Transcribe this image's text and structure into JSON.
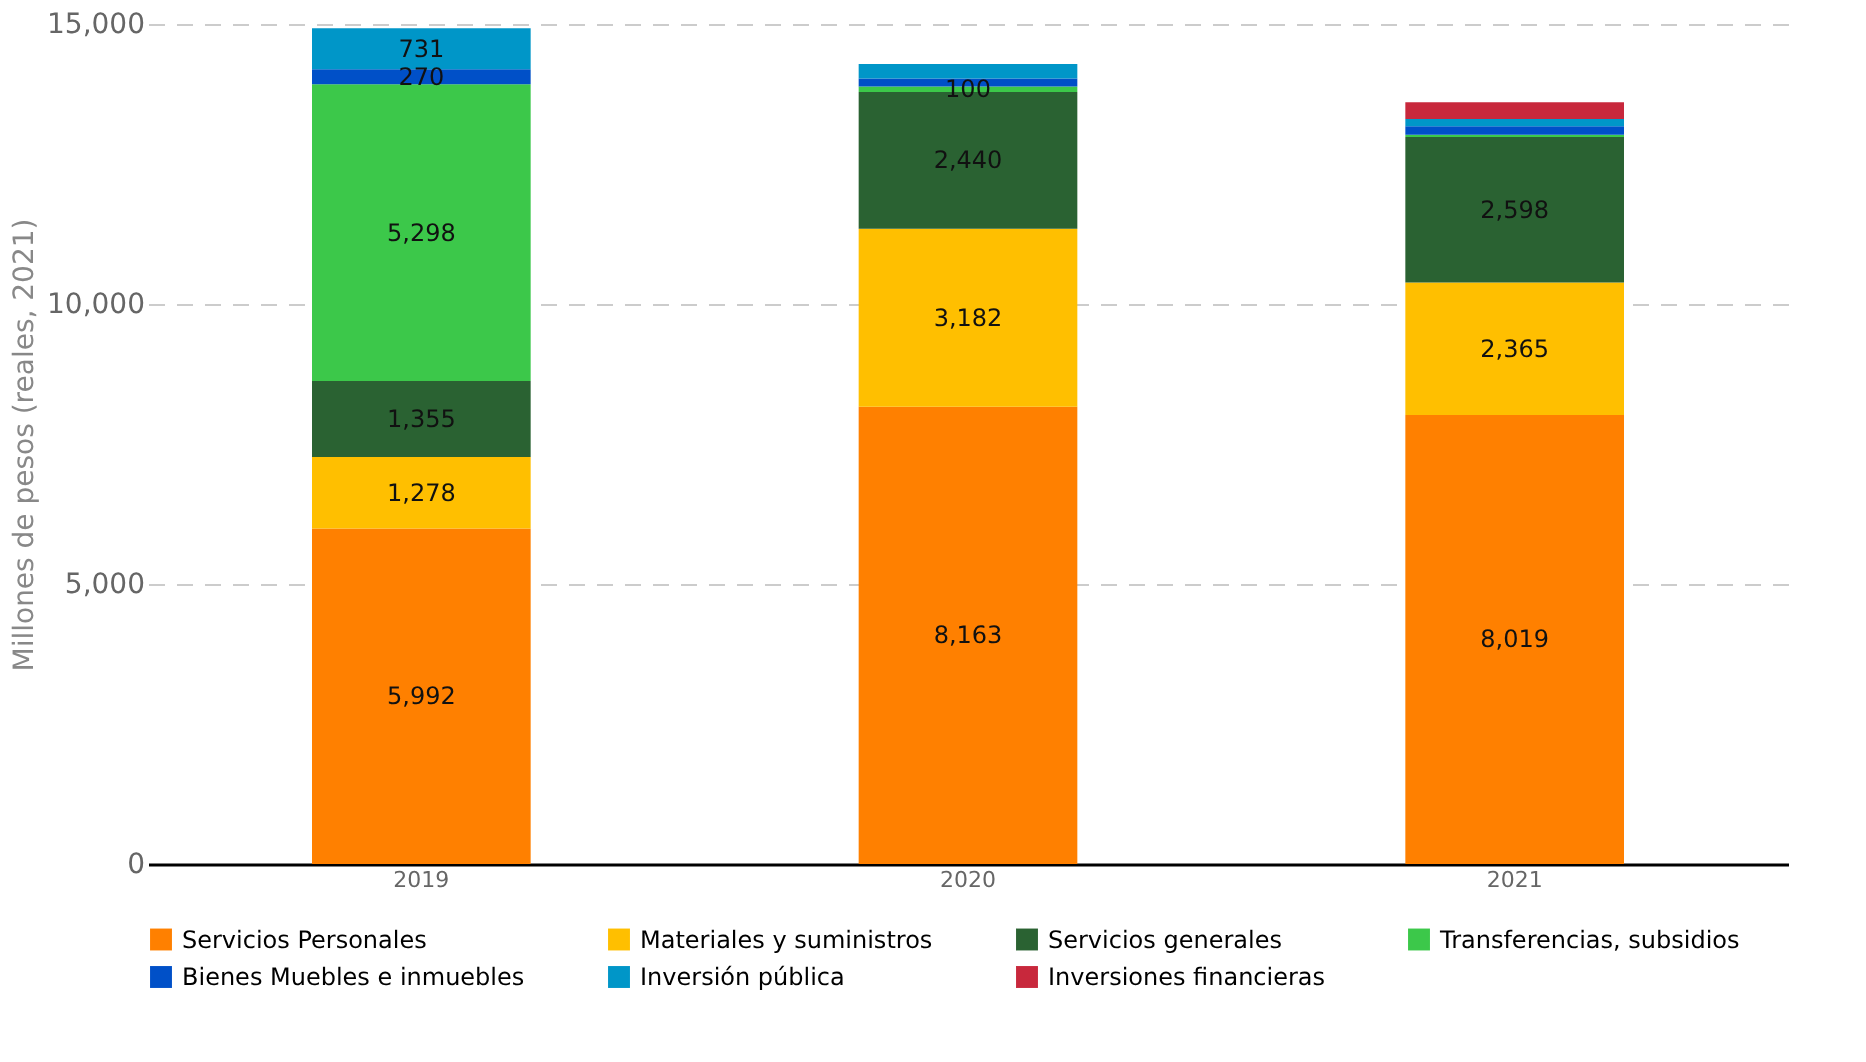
{
  "chart_data": {
    "type": "bar",
    "stacked": true,
    "ylabel": "Millones de pesos (reales, 2021)",
    "categories": [
      "2019",
      "2020",
      "2021"
    ],
    "ylim": [
      0,
      15000
    ],
    "yticks": [
      {
        "value": 0,
        "label": "0"
      },
      {
        "value": 5000,
        "label": "5,000"
      },
      {
        "value": 10000,
        "label": "10,000"
      },
      {
        "value": 15000,
        "label": "15,000"
      }
    ],
    "grid": "y",
    "legend": "bottom",
    "series": [
      {
        "name": "Servicios Personales",
        "color": "#ff8000",
        "values": [
          5992,
          8163,
          8019
        ],
        "value_labels": [
          "5,992",
          "8,163",
          "8,019"
        ]
      },
      {
        "name": "Materiales y suministros",
        "color": "#ffbf00",
        "values": [
          1278,
          3182,
          2365
        ],
        "value_labels": [
          "1,278",
          "3,182",
          "2,365"
        ]
      },
      {
        "name": "Servicios generales",
        "color": "#2a6232",
        "values": [
          1355,
          2440,
          2598
        ],
        "value_labels": [
          "1,355",
          "2,440",
          "2,598"
        ]
      },
      {
        "name": "Transferencias, subsidios",
        "color": "#3cc84a",
        "values": [
          5298,
          100,
          40
        ],
        "value_labels": [
          "5,298",
          "100",
          null
        ]
      },
      {
        "name": "Bienes Muebles e inmuebles",
        "color": "#0050c8",
        "values": [
          270,
          140,
          150
        ],
        "value_labels": [
          "270",
          null,
          null
        ]
      },
      {
        "name": "Inversión pública",
        "color": "#0096c8",
        "values": [
          731,
          260,
          130
        ],
        "value_labels": [
          "731",
          null,
          null
        ]
      },
      {
        "name": "Inversiones financieras",
        "color": "#c8283c",
        "values": [
          null,
          null,
          300
        ],
        "value_labels": [
          null,
          null,
          null
        ]
      }
    ]
  }
}
